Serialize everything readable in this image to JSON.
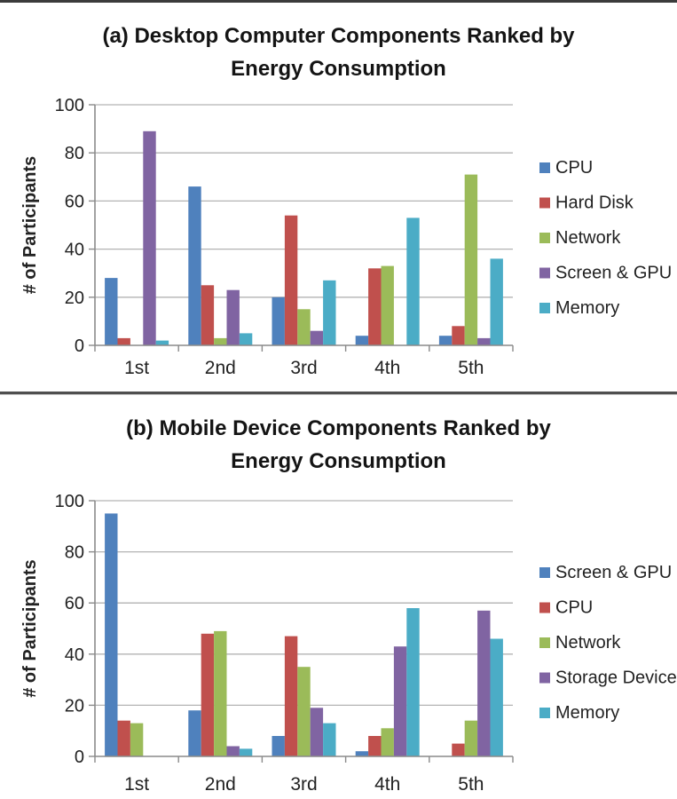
{
  "chart_data": [
    {
      "type": "bar",
      "title": "(a) Desktop Computer Components Ranked by Energy Consumption",
      "title_line1": "(a) Desktop Computer Components Ranked by",
      "title_line2": "Energy Consumption",
      "ylabel": "# of Participants",
      "xlabel": "",
      "ylim": [
        0,
        100
      ],
      "yticks": [
        0,
        20,
        40,
        60,
        80,
        100
      ],
      "grid": true,
      "legend_position": "right",
      "categories": [
        "1st",
        "2nd",
        "3rd",
        "4th",
        "5th"
      ],
      "series": [
        {
          "name": "CPU",
          "color": "#4F81BD",
          "values": [
            28,
            66,
            20,
            4,
            4
          ]
        },
        {
          "name": "Hard Disk",
          "color": "#C0504D",
          "values": [
            3,
            25,
            54,
            32,
            8
          ]
        },
        {
          "name": "Network",
          "color": "#9BBB59",
          "values": [
            0,
            3,
            15,
            33,
            71
          ]
        },
        {
          "name": "Screen & GPU",
          "color": "#8064A2",
          "values": [
            89,
            23,
            6,
            0,
            3
          ]
        },
        {
          "name": "Memory",
          "color": "#4BACC6",
          "values": [
            2,
            5,
            27,
            53,
            36
          ]
        }
      ]
    },
    {
      "type": "bar",
      "title": "(b) Mobile Device Components Ranked by Energy Consumption",
      "title_line1": "(b) Mobile Device Components Ranked by",
      "title_line2": "Energy Consumption",
      "ylabel": "# of Participants",
      "xlabel": "",
      "ylim": [
        0,
        100
      ],
      "yticks": [
        0,
        20,
        40,
        60,
        80,
        100
      ],
      "grid": true,
      "legend_position": "right",
      "categories": [
        "1st",
        "2nd",
        "3rd",
        "4th",
        "5th"
      ],
      "series": [
        {
          "name": "Screen & GPU",
          "color": "#4F81BD",
          "values": [
            95,
            18,
            8,
            2,
            0
          ]
        },
        {
          "name": "CPU",
          "color": "#C0504D",
          "values": [
            14,
            48,
            47,
            8,
            5
          ]
        },
        {
          "name": "Network",
          "color": "#9BBB59",
          "values": [
            13,
            49,
            35,
            11,
            14
          ]
        },
        {
          "name": "Storage Device",
          "color": "#8064A2",
          "values": [
            0,
            4,
            19,
            43,
            57
          ]
        },
        {
          "name": "Memory",
          "color": "#4BACC6",
          "values": [
            0,
            3,
            13,
            58,
            46
          ]
        }
      ]
    }
  ]
}
